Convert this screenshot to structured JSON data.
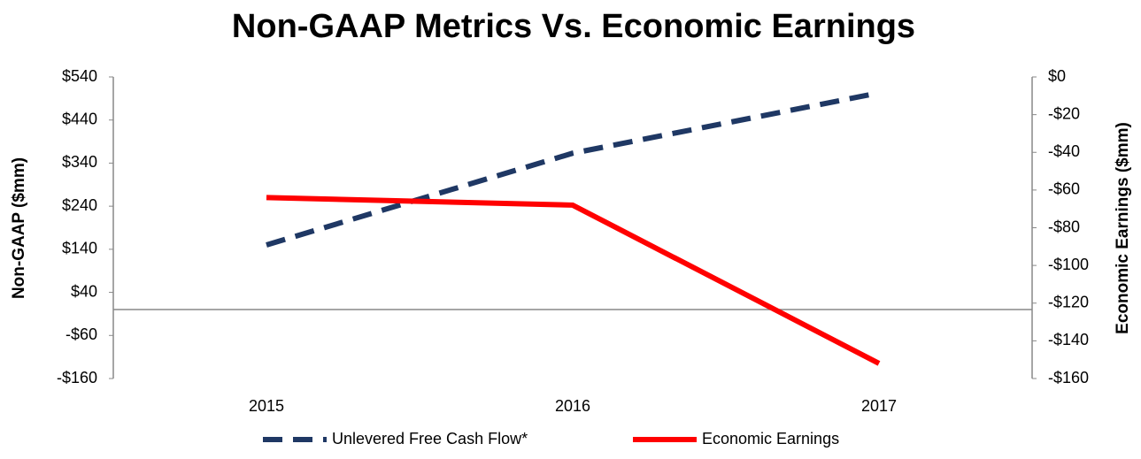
{
  "chart_data": {
    "type": "line",
    "title": "Non-GAAP Metrics Vs. Economic Earnings",
    "ylabel": "Non-GAAP ($mm)",
    "y2label": "Economic Earnings ($mm)",
    "categories": [
      "2015",
      "2016",
      "2017"
    ],
    "series": [
      {
        "name": "Unlevered Free Cash Flow*",
        "color": "#1f3864",
        "dashed": true,
        "values": [
          150,
          363,
          503
        ]
      },
      {
        "name": "Economic Earnings",
        "color": "#ff0000",
        "dashed": false,
        "axis": "y2",
        "values": [
          -64,
          -68,
          -152
        ]
      }
    ],
    "ylim": [
      -160,
      540
    ],
    "yticks": [
      {
        "value": -160,
        "label": "-$160"
      },
      {
        "value": -60,
        "label": "-$60"
      },
      {
        "value": 40,
        "label": "$40"
      },
      {
        "value": 140,
        "label": "$140"
      },
      {
        "value": 240,
        "label": "$240"
      },
      {
        "value": 340,
        "label": "$340"
      },
      {
        "value": 440,
        "label": "$440"
      },
      {
        "value": 540,
        "label": "$540"
      }
    ],
    "y2lim": [
      -160,
      0
    ],
    "y2ticks": [
      {
        "value": 0,
        "label": "$0"
      },
      {
        "value": -20,
        "label": "-$20"
      },
      {
        "value": -40,
        "label": "-$40"
      },
      {
        "value": -60,
        "label": "-$60"
      },
      {
        "value": -80,
        "label": "-$80"
      },
      {
        "value": -100,
        "label": "-$100"
      },
      {
        "value": -120,
        "label": "-$120"
      },
      {
        "value": -140,
        "label": "-$140"
      },
      {
        "value": -160,
        "label": "-$160"
      }
    ],
    "legend": "bottom"
  }
}
